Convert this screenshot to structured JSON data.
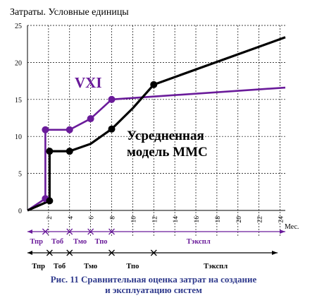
{
  "chart_data": {
    "type": "line",
    "ylabel": "Затраты. Условные единицы",
    "xunit": "Мес.",
    "caption": [
      "Рис. 11 Сравнительная оценка затрат на создание",
      "и эксплуатацию систем"
    ],
    "xlim": [
      0,
      24.5
    ],
    "ylim": [
      0,
      25
    ],
    "x_ticks": [
      2,
      4,
      6,
      8,
      10,
      12,
      14,
      16,
      18,
      20,
      22,
      24
    ],
    "y_ticks": [
      0,
      5,
      10,
      15,
      20,
      25
    ],
    "grid": true,
    "colors": {
      "vxi": "#6a1b9a",
      "mms": "#000000"
    },
    "series": [
      {
        "name": "VXI",
        "color": "#6a1b9a",
        "points": [
          [
            0,
            0
          ],
          [
            1.7,
            1.6
          ],
          [
            1.7,
            10.9
          ],
          [
            4,
            10.9
          ],
          [
            6,
            12.4
          ],
          [
            8,
            15.0
          ],
          [
            24.5,
            16.6
          ]
        ],
        "markers": [
          [
            1.7,
            1.6
          ],
          [
            1.7,
            10.9
          ],
          [
            4,
            10.9
          ],
          [
            6,
            12.4
          ],
          [
            8,
            15.0
          ]
        ]
      },
      {
        "name": "Усредненная модель ММС",
        "label_lines": [
          "Усредненная",
          "модель ММС"
        ],
        "color": "#000000",
        "points": [
          [
            0,
            0
          ],
          [
            2.1,
            1.3
          ],
          [
            2.1,
            8.0
          ],
          [
            4,
            8.0
          ],
          [
            6,
            9.0
          ],
          [
            8,
            11.0
          ],
          [
            10,
            13.8
          ],
          [
            12,
            17.0
          ],
          [
            24.5,
            23.4
          ]
        ],
        "markers": [
          [
            2.1,
            1.3
          ],
          [
            2.1,
            8.0
          ],
          [
            4,
            8.0
          ],
          [
            8,
            11.0
          ],
          [
            12,
            17.0
          ]
        ]
      }
    ],
    "phase_rows": [
      {
        "color": "#6a1b9a",
        "boundaries": [
          0,
          1.7,
          4,
          6,
          8,
          24.5
        ],
        "labels": [
          "Тпр",
          "Тоб",
          "Тмо",
          "Тпо",
          "Тэкспл"
        ]
      },
      {
        "color": "#000000",
        "boundaries": [
          0,
          2.1,
          4,
          8,
          12,
          24.5
        ],
        "labels": [
          "Тпр",
          "Тоб",
          "Тмо",
          "Тпо",
          "Тэкспл"
        ]
      }
    ]
  }
}
